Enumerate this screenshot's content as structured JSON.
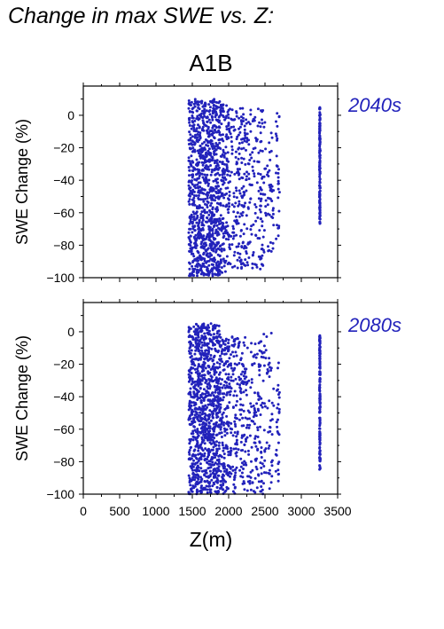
{
  "figure": {
    "title": "Change in max SWE vs. Z:",
    "scenario": "A1B",
    "xlabel": "Z(m)"
  },
  "chart_data": [
    {
      "type": "scatter",
      "period_label": "2040s",
      "ylabel": "SWE Change (%)",
      "xlabel": "",
      "xlim": [
        0,
        3500
      ],
      "ylim": [
        -100,
        18
      ],
      "xticks": [
        0,
        500,
        1000,
        1500,
        2000,
        2500,
        3000,
        3500
      ],
      "yticks": [
        0,
        -20,
        -40,
        -60,
        -80,
        -100
      ],
      "show_xtick_labels": false,
      "grid": false,
      "marker_color": "#2222bb",
      "columns": [
        {
          "x_min": 1450,
          "x_max": 1880,
          "y_min": -99,
          "y_max": 10,
          "density": 1.0
        },
        {
          "x_min": 1880,
          "x_max": 2000,
          "y_min": -97,
          "y_max": 7,
          "density": 0.6
        },
        {
          "x_min": 2000,
          "x_max": 2250,
          "y_min": -95,
          "y_max": 6,
          "density": 0.35
        },
        {
          "x_min": 2250,
          "x_max": 2480,
          "y_min": -95,
          "y_max": 4,
          "density": 0.25
        },
        {
          "x_min": 2480,
          "x_max": 2620,
          "y_min": -85,
          "y_max": 2,
          "density": 0.18
        },
        {
          "x_min": 2650,
          "x_max": 2700,
          "y_min": -78,
          "y_max": 2,
          "density": 0.12
        },
        {
          "x_min": 3250,
          "x_max": 3260,
          "y_min": -68,
          "y_max": 5,
          "density": 0.12
        }
      ]
    },
    {
      "type": "scatter",
      "period_label": "2080s",
      "ylabel": "SWE Change (%)",
      "xlabel": "Z(m)",
      "xlim": [
        0,
        3500
      ],
      "ylim": [
        -100,
        18
      ],
      "xticks": [
        0,
        500,
        1000,
        1500,
        2000,
        2500,
        3000,
        3500
      ],
      "yticks": [
        0,
        -20,
        -40,
        -60,
        -80,
        -100
      ],
      "show_xtick_labels": true,
      "grid": false,
      "marker_color": "#2222bb",
      "columns": [
        {
          "x_min": 1450,
          "x_max": 1880,
          "y_min": -100,
          "y_max": 5,
          "density": 1.0
        },
        {
          "x_min": 1880,
          "x_max": 2000,
          "y_min": -100,
          "y_max": -2,
          "density": 0.6
        },
        {
          "x_min": 2000,
          "x_max": 2250,
          "y_min": -100,
          "y_max": -3,
          "density": 0.35
        },
        {
          "x_min": 2250,
          "x_max": 2480,
          "y_min": -100,
          "y_max": -5,
          "density": 0.25
        },
        {
          "x_min": 2480,
          "x_max": 2620,
          "y_min": -98,
          "y_max": 1,
          "density": 0.18
        },
        {
          "x_min": 2650,
          "x_max": 2700,
          "y_min": -92,
          "y_max": -18,
          "density": 0.12
        },
        {
          "x_min": 3250,
          "x_max": 3260,
          "y_min": -85,
          "y_max": -2,
          "density": 0.12
        }
      ]
    }
  ]
}
